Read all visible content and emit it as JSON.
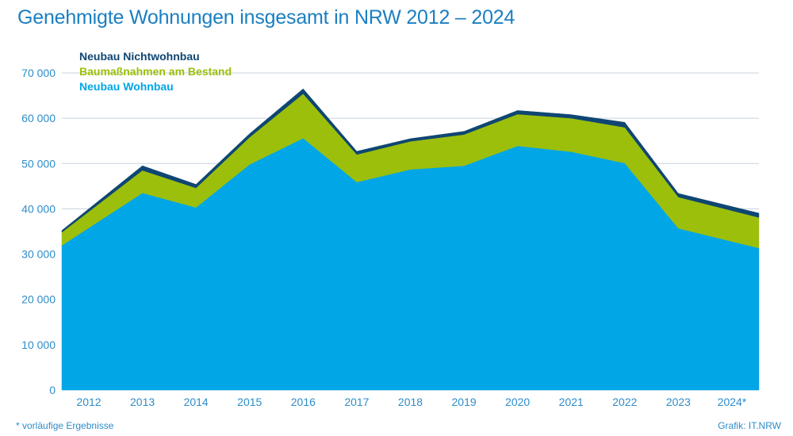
{
  "chart_data": {
    "type": "area",
    "stacked": true,
    "title": "Genehmigte Wohnungen insgesamt in NRW 2012 – 2024",
    "x": [
      "2012",
      "2013",
      "2014",
      "2015",
      "2016",
      "2017",
      "2018",
      "2019",
      "2020",
      "2021",
      "2022",
      "2023",
      "2024*"
    ],
    "series": [
      {
        "name": "Neubau Wohnbau",
        "color": "#00a6e6",
        "values": [
          35800,
          43500,
          40300,
          49800,
          55600,
          45900,
          48700,
          49500,
          53900,
          52600,
          50100,
          35700,
          32800
        ]
      },
      {
        "name": "Baumaßnahmen am Bestand",
        "color": "#9cbf0c",
        "values": [
          3600,
          5000,
          4300,
          6000,
          9800,
          6100,
          6200,
          6900,
          7000,
          7400,
          7900,
          6900,
          6800
        ]
      },
      {
        "name": "Neubau Nichtwohnbau",
        "color": "#0f4672",
        "values": [
          600,
          1000,
          800,
          800,
          1100,
          700,
          600,
          700,
          800,
          800,
          1100,
          800,
          900
        ]
      }
    ],
    "y_ticks": [
      "0",
      "10 000",
      "20 000",
      "30 000",
      "40 000",
      "50 000",
      "60 000",
      "70 000"
    ],
    "ylim": [
      0,
      70000
    ],
    "grid": true,
    "legend_position": "top-left",
    "footnote": "* vorläufige Ergebnisse",
    "source": "Grafik: IT.NRW"
  }
}
